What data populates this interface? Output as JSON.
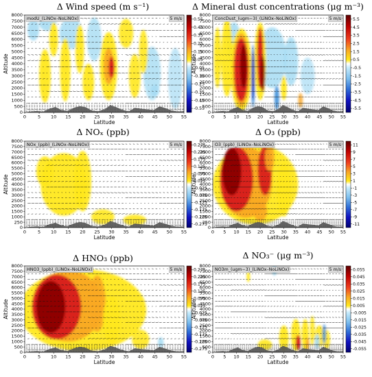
{
  "colors": {
    "dark_red": "#8b0000",
    "red": "#d7191c",
    "orange_red": "#ef3b1e",
    "orange": "#f9a825",
    "yellow": "#ffe81c",
    "light_blue": "#a6dcf3",
    "mid_blue": "#3f8fd8",
    "dark_blue": "#1010c0",
    "navy": "#000080",
    "terrain": "#555555"
  },
  "chart_data": [
    {
      "type": "heatmap",
      "title": "Δ Wind speed (m s⁻¹)",
      "inset_label": "modU_(LiNOx–NoLiNOx)",
      "vector_scale_label": "5 m/s",
      "xlabel": "Latitude",
      "ylabel": "Altitude",
      "xlim": [
        0,
        55
      ],
      "ylim": [
        0,
        8000
      ],
      "x_ticks": [
        "0",
        "5",
        "10",
        "15",
        "20",
        "25",
        "30",
        "35",
        "40",
        "45",
        "50",
        "55"
      ],
      "y_ticks": [
        "0",
        "500",
        "1000",
        "1500",
        "2000",
        "2500",
        "3000",
        "3500",
        "4000",
        "4500",
        "5000",
        "5500",
        "6000",
        "6500",
        "7000",
        "7500",
        "8000"
      ],
      "colorbar_ticks": [
        "0.55",
        "0.45",
        "0.35",
        "0.25",
        "0.15",
        "0.05",
        "-0.05",
        "-0.15",
        "-0.25",
        "-0.35",
        "-0.45",
        "-0.55"
      ]
    },
    {
      "type": "heatmap",
      "title": "Δ Mineral dust concentrations (μg m⁻³)",
      "inset_label": "ConcDust_(ugm−3)_(LiNOx–NoLiNOx)",
      "vector_scale_label": "5 m/s",
      "xlabel": "Latitude",
      "ylabel": "Altitude",
      "xlim": [
        0,
        55
      ],
      "ylim": [
        0,
        8000
      ],
      "x_ticks": [
        "0",
        "5",
        "10",
        "15",
        "20",
        "25",
        "30",
        "35",
        "40",
        "45",
        "50",
        "55"
      ],
      "y_ticks": [
        "0",
        "500",
        "1000",
        "1500",
        "2000",
        "2500",
        "3000",
        "3500",
        "4000",
        "4500",
        "5000",
        "5500",
        "6000",
        "6500",
        "7000",
        "7500",
        "8000"
      ],
      "colorbar_ticks": [
        "5.5",
        "4.5",
        "3.5",
        "2.5",
        "1.5",
        "0.5",
        "-0.5",
        "-1.5",
        "-2.5",
        "-3.5",
        "-4.5",
        "-5.5"
      ]
    },
    {
      "type": "heatmap",
      "title": "Δ NOₓ (ppb)",
      "inset_label": "NOx_(ppb)_(LiNOx–NoLiNOx)",
      "vector_scale_label": "5 m/s",
      "xlabel": "Latitude",
      "ylabel": "Altitude",
      "xlim": [
        0,
        55
      ],
      "ylim": [
        0,
        8000
      ],
      "x_ticks": [
        "0",
        "5",
        "10",
        "15",
        "20",
        "25",
        "30",
        "35",
        "40",
        "45",
        "50",
        "55"
      ],
      "y_ticks": [
        "0",
        "250",
        "1000",
        "1500",
        "2000",
        "2500",
        "3000",
        "3500",
        "4000",
        "4500",
        "5000",
        "5500",
        "6000",
        "6500",
        "7000",
        "7500",
        "8000"
      ],
      "colorbar_ticks": [
        "0.275",
        "0.225",
        "0.175",
        "0.125",
        "0.075",
        "0.025",
        "-0.025",
        "-0.075",
        "-0.125",
        "-0.175",
        "-0.225",
        "-0.275"
      ]
    },
    {
      "type": "heatmap",
      "title": "Δ O₃ (ppb)",
      "inset_label": "O3_(ppb)_(LiNOx–NoLiNOx)",
      "vector_scale_label": "5 m/s",
      "xlabel": "Latitude",
      "ylabel": "Altitude",
      "xlim": [
        0,
        55
      ],
      "ylim": [
        0,
        8000
      ],
      "x_ticks": [
        "0",
        "5",
        "10",
        "15",
        "20",
        "25",
        "30",
        "35",
        "40",
        "45",
        "50",
        "55"
      ],
      "y_ticks": [
        "0",
        "250",
        "1000",
        "1500",
        "2000",
        "2500",
        "3000",
        "3500",
        "4000",
        "4500",
        "5000",
        "5500",
        "6000",
        "6500",
        "7000",
        "7500",
        "8000"
      ],
      "colorbar_ticks": [
        "11",
        "9",
        "7",
        "5",
        "3",
        "1",
        "-1",
        "-3",
        "-5",
        "-7",
        "-9",
        "-11"
      ]
    },
    {
      "type": "heatmap",
      "title": "Δ HNO₃ (ppb)",
      "inset_label": "HNO3_(ppb)_(LiNOx–NoLiNOx)",
      "vector_scale_label": "5 m/s",
      "xlabel": "Latitude",
      "ylabel": "Altitude",
      "xlim": [
        0,
        55
      ],
      "ylim": [
        0,
        8000
      ],
      "x_ticks": [
        "0",
        "5",
        "10",
        "15",
        "20",
        "25",
        "30",
        "35",
        "40",
        "45",
        "50",
        "55"
      ],
      "y_ticks": [
        "0",
        "500",
        "1000",
        "1500",
        "2000",
        "2500",
        "3000",
        "3500",
        "4000",
        "4500",
        "5000",
        "5500",
        "6000",
        "6500",
        "7000",
        "7500",
        "8000"
      ],
      "colorbar_ticks": [
        "0.275",
        "0.225",
        "0.175",
        "0.125",
        "0.075",
        "0.025",
        "-0.025",
        "-0.075",
        "-0.125",
        "-0.175",
        "-0.225",
        "-0.275"
      ]
    },
    {
      "type": "heatmap",
      "title": "Δ NO₃⁻ (μg m⁻³)",
      "inset_label": "NO3m_(ugm−3)_(LiNOx–NoLiNOx)",
      "vector_scale_label": "5 m/s",
      "xlabel": "Latitude",
      "ylabel": "Altitude",
      "xlim": [
        0,
        55
      ],
      "ylim": [
        0,
        8000
      ],
      "x_ticks": [
        "0",
        "5",
        "10",
        "15",
        "20",
        "25",
        "30",
        "35",
        "40",
        "45",
        "50",
        "55"
      ],
      "y_ticks": [
        "0",
        "500",
        "1000",
        "1500",
        "2000",
        "2500",
        "3000",
        "3500",
        "4000",
        "4500",
        "5000",
        "5500",
        "6000",
        "6500",
        "7000",
        "7500",
        "8000"
      ],
      "colorbar_ticks": [
        "0.055",
        "0.045",
        "0.035",
        "0.025",
        "0.015",
        "0.005",
        "-0.005",
        "-0.015",
        "-0.025",
        "-0.035",
        "-0.045",
        "-0.055"
      ]
    }
  ]
}
